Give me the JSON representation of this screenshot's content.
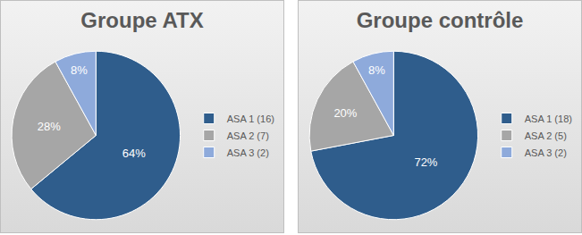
{
  "chart_data": [
    {
      "type": "pie",
      "title": "Groupe ATX",
      "categories": [
        "ASA 1 (16)",
        "ASA 2 (7)",
        "ASA 3 (2)"
      ],
      "values": [
        64,
        28,
        8
      ],
      "value_labels": [
        "64%",
        "28%",
        "8%"
      ],
      "colors": [
        "#2f5d8c",
        "#a6a6a6",
        "#8eaadb"
      ],
      "data_labels": true,
      "legend": "right"
    },
    {
      "type": "pie",
      "title": "Groupe contrôle",
      "categories": [
        "ASA 1 (18)",
        "ASA 2 (5)",
        "ASA 3 (2)"
      ],
      "values": [
        72,
        20,
        8
      ],
      "value_labels": [
        "72%",
        "20%",
        "8%"
      ],
      "colors": [
        "#2f5d8c",
        "#a6a6a6",
        "#8eaadb"
      ],
      "data_labels": true,
      "legend": "right"
    }
  ]
}
